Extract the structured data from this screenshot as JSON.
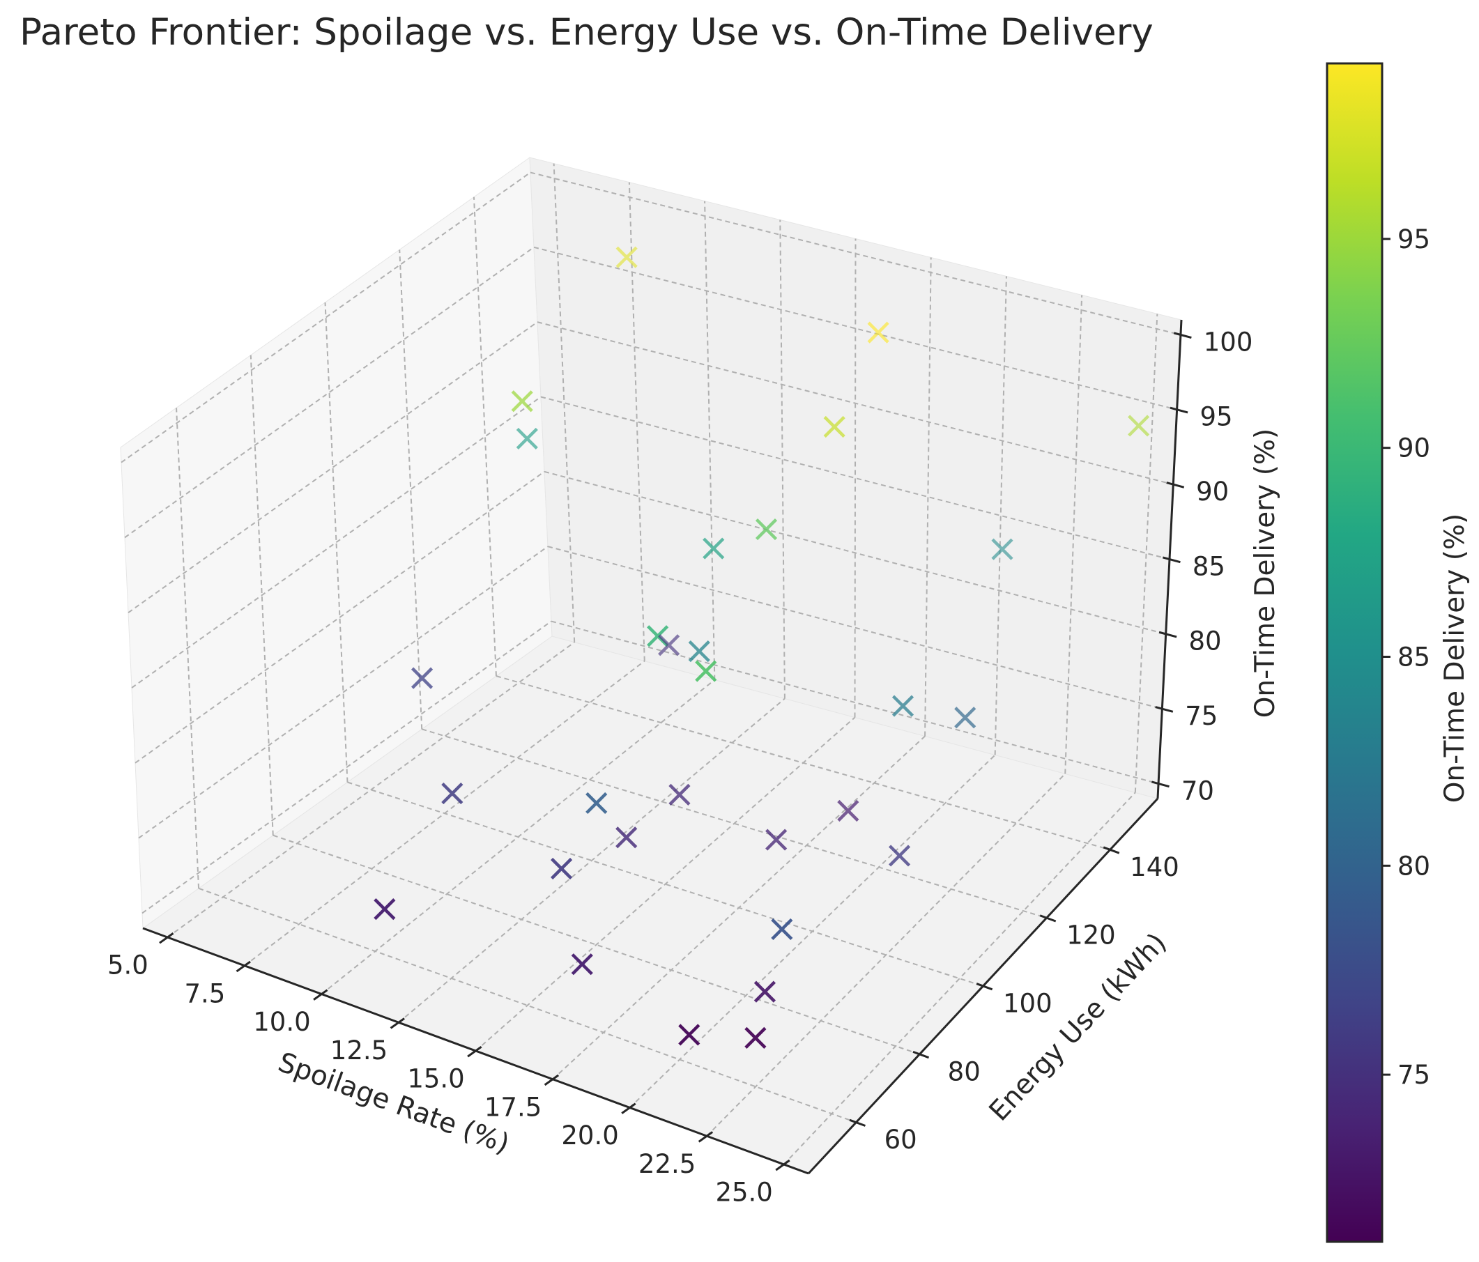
{
  "chart_data": {
    "type": "scatter",
    "projection": "3d",
    "title": "Pareto Frontier: Spoilage vs. Energy Use vs. On-Time Delivery",
    "xlabel": "Spoilage Rate (%)",
    "ylabel": "Energy Use (kWh)",
    "zlabel": "On-Time Delivery (%)",
    "xlim": [
      4.2,
      25.8
    ],
    "ylim": [
      45,
      155
    ],
    "zlim": [
      69,
      101
    ],
    "xticks": [
      "5.0",
      "7.5",
      "10.0",
      "12.5",
      "15.0",
      "17.5",
      "20.0",
      "22.5",
      "25.0"
    ],
    "yticks": [
      "60",
      "80",
      "100",
      "120",
      "140"
    ],
    "zticks": [
      "70",
      "75",
      "80",
      "85",
      "90",
      "95",
      "100"
    ],
    "grid": true,
    "marker": "x",
    "colormap": "viridis",
    "colorbar": {
      "label": "On-Time Delivery (%)",
      "range": [
        71,
        99.2
      ],
      "ticks": [
        "75",
        "80",
        "85",
        "90",
        "95"
      ]
    },
    "points": [
      {
        "x": 6.2,
        "y": 135.7,
        "z": 86.7
      },
      {
        "x": 8.4,
        "y": 146.5,
        "z": 98.0
      },
      {
        "x": 20.8,
        "y": 148.6,
        "z": 84.5
      },
      {
        "x": 10.7,
        "y": 137.1,
        "z": 75.1
      },
      {
        "x": 17.6,
        "y": 139.1,
        "z": 99.2
      },
      {
        "x": 14.6,
        "y": 117.9,
        "z": 87.4
      },
      {
        "x": 18.2,
        "y": 121.3,
        "z": 96.8
      },
      {
        "x": 9.0,
        "y": 112.4,
        "z": 95.0
      },
      {
        "x": 17.5,
        "y": 107.9,
        "z": 92.3
      },
      {
        "x": 15.6,
        "y": 105.1,
        "z": 83.7
      },
      {
        "x": 19.5,
        "y": 114.9,
        "z": 73.5
      },
      {
        "x": 22.8,
        "y": 120.3,
        "z": 80.4
      },
      {
        "x": 18.7,
        "y": 100.5,
        "z": 74.1
      },
      {
        "x": 25.5,
        "y": 146.0,
        "z": 95.7
      },
      {
        "x": 15.2,
        "y": 102.6,
        "z": 74.5
      },
      {
        "x": 21.8,
        "y": 110.3,
        "z": 82.7
      },
      {
        "x": 6.4,
        "y": 103.9,
        "z": 76.6
      },
      {
        "x": 23.0,
        "y": 99.0,
        "z": 76.0
      },
      {
        "x": 16.7,
        "y": 83.6,
        "z": 89.6
      },
      {
        "x": 15.1,
        "y": 88.1,
        "z": 74.5
      },
      {
        "x": 19.5,
        "y": 72.4,
        "z": 91.3
      },
      {
        "x": 10.4,
        "y": 79.0,
        "z": 76.1
      },
      {
        "x": 15.6,
        "y": 75.3,
        "z": 79.6
      },
      {
        "x": 22.8,
        "y": 64.9,
        "z": 78.3
      },
      {
        "x": 15.0,
        "y": 70.3,
        "z": 75.9
      },
      {
        "x": 11.0,
        "y": 54.6,
        "z": 73.5
      },
      {
        "x": 17.0,
        "y": 58.4,
        "z": 73.4
      },
      {
        "x": 21.8,
        "y": 69.2,
        "z": 72.7
      },
      {
        "x": 20.5,
        "y": 58.3,
        "z": 71.3
      },
      {
        "x": 22.1,
        "y": 63.6,
        "z": 71.1
      }
    ]
  }
}
